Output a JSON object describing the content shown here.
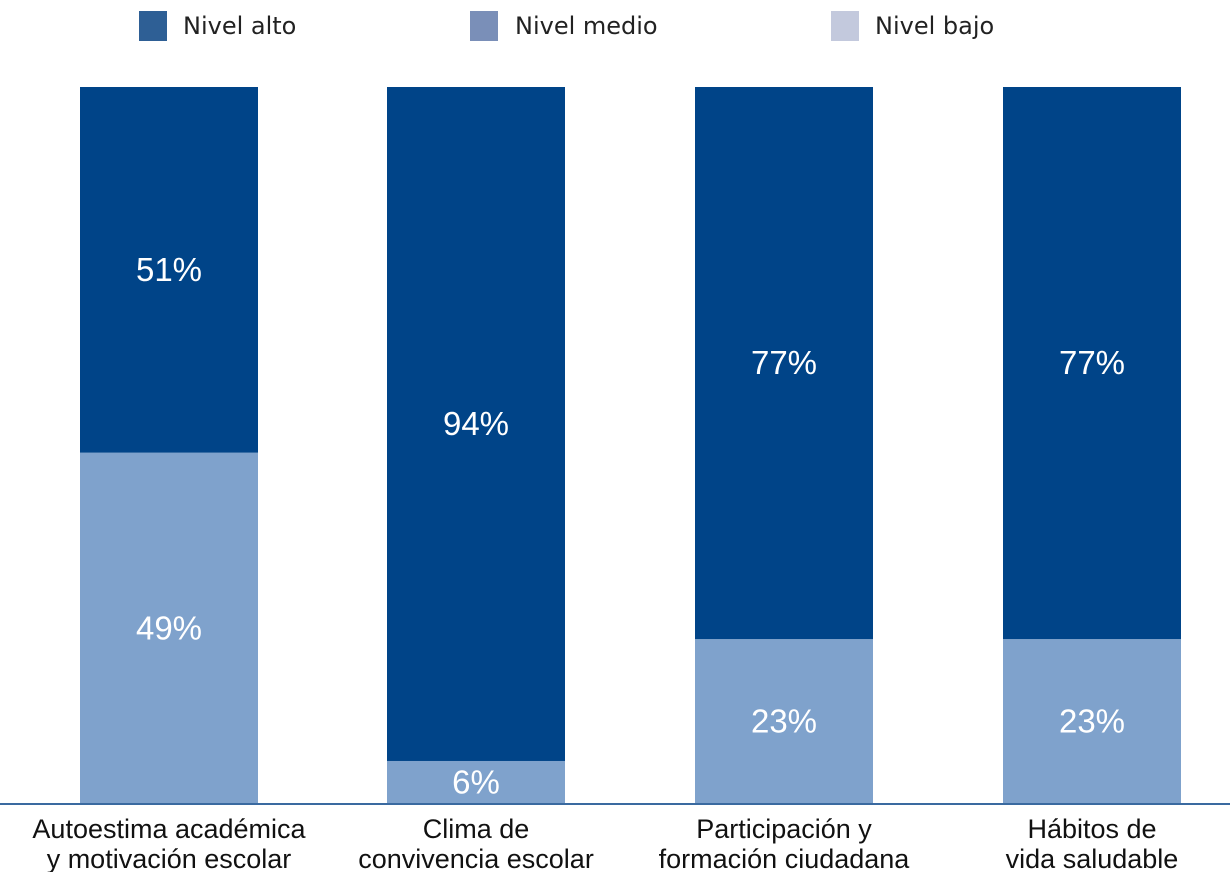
{
  "chart_data": {
    "type": "bar",
    "stacked": true,
    "categories": [
      [
        "Autoestima académica",
        "y motivación escolar"
      ],
      [
        "Clima de",
        "convivencia escolar"
      ],
      [
        "Participación y",
        "formación ciudadana"
      ],
      [
        "Hábitos de",
        "vida saludable"
      ]
    ],
    "series": [
      {
        "name": "Nivel alto",
        "values": [
          51,
          94,
          77,
          77
        ],
        "labels": [
          "51%",
          "94%",
          "77%",
          "77%"
        ]
      },
      {
        "name": "Nivel medio",
        "values": [
          49,
          6,
          23,
          23
        ],
        "labels": [
          "49%",
          "6%",
          "23%",
          "23%"
        ]
      },
      {
        "name": "Nivel bajo",
        "values": [
          0,
          0,
          0,
          0
        ],
        "labels": [
          "",
          "",
          "",
          ""
        ]
      }
    ],
    "ylim": [
      0,
      100
    ],
    "legend_position": "top",
    "grid": false,
    "colors": {
      "bar_alto": "#004488",
      "bar_medio": "#7fa2cc",
      "legend_alto": "#2e5f95",
      "legend_medio": "#7a8fb8",
      "legend_bajo": "#c3c9dd",
      "axis": "#3a6aa0"
    }
  }
}
